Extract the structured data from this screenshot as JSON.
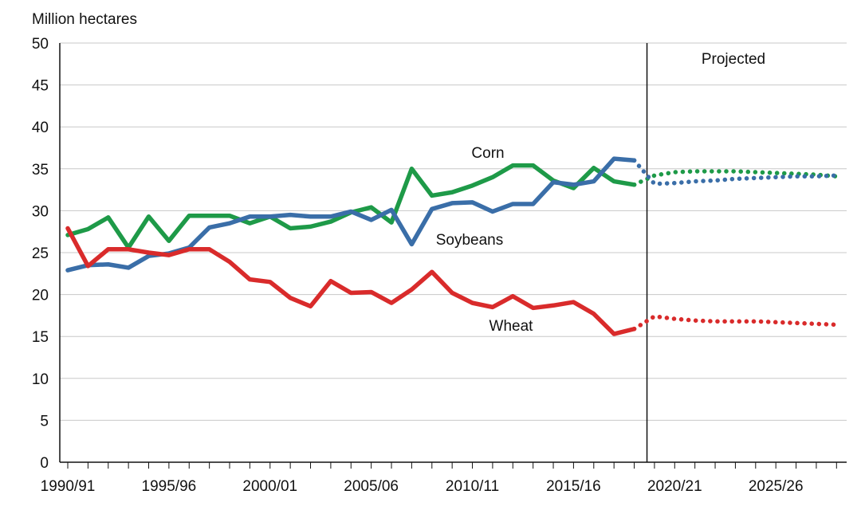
{
  "chart_data": {
    "type": "line",
    "ylabel": "Million hectares",
    "ylim": [
      0,
      50
    ],
    "yticks": [
      0,
      5,
      10,
      15,
      20,
      25,
      30,
      35,
      40,
      45,
      50
    ],
    "grid": true,
    "x_start_year": 1990,
    "x_end_year": 2028,
    "xtick_labels": [
      {
        "year": 1990,
        "label": "1990/91"
      },
      {
        "year": 1995,
        "label": "1995/96"
      },
      {
        "year": 2000,
        "label": "2000/01"
      },
      {
        "year": 2005,
        "label": "2005/06"
      },
      {
        "year": 2010,
        "label": "2010/11"
      },
      {
        "year": 2015,
        "label": "2015/16"
      },
      {
        "year": 2020,
        "label": "2020/21"
      },
      {
        "year": 2025,
        "label": "2025/26"
      }
    ],
    "projection_start_year": 2018,
    "projected_label": "Projected",
    "series": [
      {
        "name": "Corn",
        "color": "#1e9a48",
        "years": [
          1990,
          1991,
          1992,
          1993,
          1994,
          1995,
          1996,
          1997,
          1998,
          1999,
          2000,
          2001,
          2002,
          2003,
          2004,
          2005,
          2006,
          2007,
          2008,
          2009,
          2010,
          2011,
          2012,
          2013,
          2014,
          2015,
          2016,
          2017,
          2018
        ],
        "values": [
          27.1,
          27.8,
          29.2,
          25.6,
          29.3,
          26.4,
          29.4,
          29.4,
          29.4,
          28.5,
          29.3,
          27.9,
          28.1,
          28.7,
          29.8,
          30.4,
          28.6,
          35.0,
          31.8,
          32.2,
          33.0,
          34.0,
          35.4,
          35.4,
          33.6,
          32.7,
          35.1,
          33.5,
          33.1
        ],
        "proj_years": [
          2018,
          2019,
          2020,
          2021,
          2022,
          2023,
          2024,
          2025,
          2026,
          2027,
          2028
        ],
        "proj_values": [
          33.1,
          34.2,
          34.6,
          34.7,
          34.7,
          34.7,
          34.6,
          34.5,
          34.4,
          34.3,
          34.1
        ]
      },
      {
        "name": "Soybeans",
        "color": "#3a6ea8",
        "years": [
          1990,
          1991,
          1992,
          1993,
          1994,
          1995,
          1996,
          1997,
          1998,
          1999,
          2000,
          2001,
          2002,
          2003,
          2004,
          2005,
          2006,
          2007,
          2008,
          2009,
          2010,
          2011,
          2012,
          2013,
          2014,
          2015,
          2016,
          2017,
          2018
        ],
        "values": [
          22.9,
          23.5,
          23.6,
          23.2,
          24.6,
          24.9,
          25.6,
          28.0,
          28.5,
          29.3,
          29.3,
          29.5,
          29.3,
          29.3,
          29.9,
          28.9,
          30.1,
          26.0,
          30.2,
          30.9,
          31.0,
          29.9,
          30.8,
          30.8,
          33.4,
          33.1,
          33.5,
          36.2,
          36.0
        ],
        "proj_years": [
          2018,
          2019,
          2020,
          2021,
          2022,
          2023,
          2024,
          2025,
          2026,
          2027,
          2028
        ],
        "proj_values": [
          36.0,
          33.2,
          33.3,
          33.5,
          33.6,
          33.8,
          33.9,
          34.0,
          34.1,
          34.1,
          34.2
        ]
      },
      {
        "name": "Wheat",
        "color": "#d92b2b",
        "years": [
          1990,
          1991,
          1992,
          1993,
          1994,
          1995,
          1996,
          1997,
          1998,
          1999,
          2000,
          2001,
          2002,
          2003,
          2004,
          2005,
          2006,
          2007,
          2008,
          2009,
          2010,
          2011,
          2012,
          2013,
          2014,
          2015,
          2016,
          2017,
          2018
        ],
        "values": [
          27.9,
          23.4,
          25.4,
          25.4,
          25.0,
          24.7,
          25.4,
          25.4,
          23.9,
          21.8,
          21.5,
          19.6,
          18.6,
          21.6,
          20.2,
          20.3,
          19.0,
          20.6,
          22.7,
          20.2,
          19.0,
          18.5,
          19.8,
          18.4,
          18.7,
          19.1,
          17.7,
          15.3,
          15.9
        ],
        "proj_years": [
          2018,
          2019,
          2020,
          2021,
          2022,
          2023,
          2024,
          2025,
          2026,
          2027,
          2028
        ],
        "proj_values": [
          15.9,
          17.4,
          17.1,
          16.9,
          16.8,
          16.8,
          16.8,
          16.7,
          16.6,
          16.5,
          16.4
        ]
      }
    ],
    "annotations": [
      {
        "text": "Corn",
        "series": "Corn"
      },
      {
        "text": "Soybeans",
        "series": "Soybeans"
      },
      {
        "text": "Wheat",
        "series": "Wheat"
      }
    ]
  }
}
